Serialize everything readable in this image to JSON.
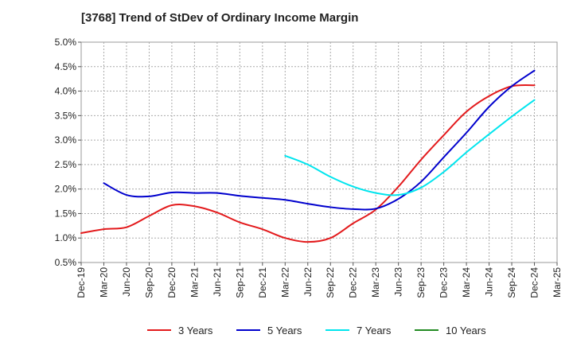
{
  "chart_data": {
    "type": "line",
    "title": "[3768]  Trend of StDev of Ordinary Income Margin",
    "xlabel": "",
    "ylabel": "",
    "x_tick_labels": [
      "Dec-19",
      "Mar-20",
      "Jun-20",
      "Sep-20",
      "Dec-20",
      "Mar-21",
      "Jun-21",
      "Sep-21",
      "Dec-21",
      "Mar-22",
      "Jun-22",
      "Sep-22",
      "Dec-22",
      "Mar-23",
      "Jun-23",
      "Sep-23",
      "Dec-23",
      "Mar-24",
      "Jun-24",
      "Sep-24",
      "Dec-24",
      "Mar-25"
    ],
    "y_tick_labels": [
      "0.5%",
      "1.0%",
      "1.5%",
      "2.0%",
      "2.5%",
      "3.0%",
      "3.5%",
      "4.0%",
      "4.5%",
      "5.0%"
    ],
    "ylim": [
      0.5,
      5.0
    ],
    "grid": true,
    "legend_position": "bottom",
    "series": [
      {
        "name": "3 Years",
        "color": "#e31a1c",
        "x": [
          "Dec-19",
          "Mar-20",
          "Jun-20",
          "Sep-20",
          "Dec-20",
          "Mar-21",
          "Jun-21",
          "Sep-21",
          "Dec-21",
          "Mar-22",
          "Jun-22",
          "Sep-22",
          "Dec-22",
          "Mar-23",
          "Jun-23",
          "Sep-23",
          "Dec-23",
          "Mar-24",
          "Jun-24",
          "Sep-24",
          "Dec-24"
        ],
        "values": [
          1.1,
          1.18,
          1.22,
          1.45,
          1.67,
          1.65,
          1.52,
          1.32,
          1.18,
          1.0,
          0.92,
          1.0,
          1.3,
          1.58,
          2.05,
          2.6,
          3.1,
          3.58,
          3.9,
          4.1,
          4.12
        ]
      },
      {
        "name": "5 Years",
        "color": "#0000cd",
        "x": [
          "Mar-20",
          "Jun-20",
          "Sep-20",
          "Dec-20",
          "Mar-21",
          "Jun-21",
          "Sep-21",
          "Dec-21",
          "Mar-22",
          "Jun-22",
          "Sep-22",
          "Dec-22",
          "Mar-23",
          "Jun-23",
          "Sep-23",
          "Dec-23",
          "Mar-24",
          "Jun-24",
          "Sep-24",
          "Dec-24"
        ],
        "values": [
          2.12,
          1.88,
          1.85,
          1.93,
          1.92,
          1.92,
          1.86,
          1.82,
          1.78,
          1.7,
          1.63,
          1.59,
          1.6,
          1.8,
          2.15,
          2.65,
          3.15,
          3.68,
          4.1,
          4.42
        ]
      },
      {
        "name": "7 Years",
        "color": "#00e5ee",
        "x": [
          "Mar-22",
          "Jun-22",
          "Sep-22",
          "Dec-22",
          "Mar-23",
          "Jun-23",
          "Sep-23",
          "Dec-23",
          "Mar-24",
          "Jun-24",
          "Sep-24",
          "Dec-24"
        ],
        "values": [
          2.68,
          2.5,
          2.25,
          2.05,
          1.92,
          1.88,
          2.03,
          2.35,
          2.75,
          3.12,
          3.48,
          3.82
        ]
      },
      {
        "name": "10 Years",
        "color": "#228b22",
        "x": [],
        "values": []
      }
    ]
  }
}
